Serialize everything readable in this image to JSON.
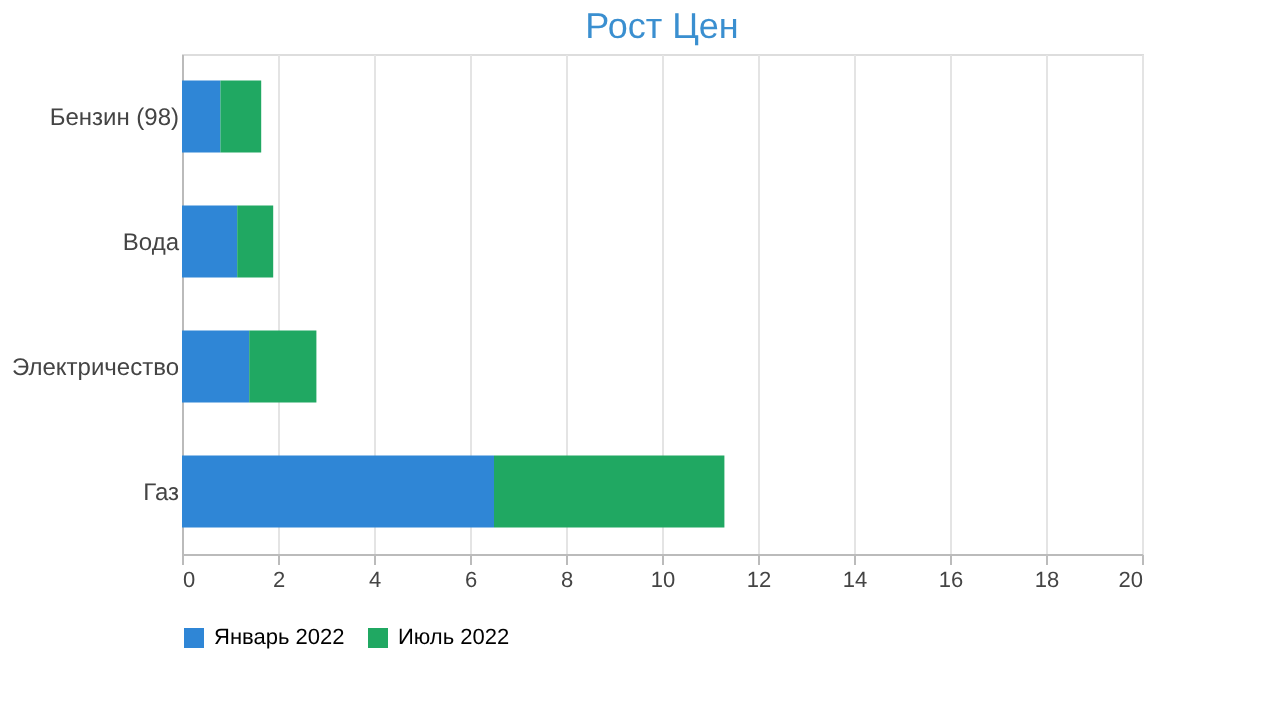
{
  "chart_data": {
    "type": "bar",
    "orientation": "horizontal",
    "stacked": true,
    "title": "Рост Цен",
    "categories": [
      "Бензин (98)",
      "Вода",
      "Электричество",
      "Газ"
    ],
    "series": [
      {
        "name": "Январь 2022",
        "color": "#2f86d6",
        "values": [
          0.8,
          1.15,
          1.4,
          6.5
        ]
      },
      {
        "name": "Июль 2022",
        "color": "#20a862",
        "values": [
          0.85,
          0.75,
          1.4,
          4.8
        ]
      }
    ],
    "xlim": [
      0,
      20
    ],
    "xticks": [
      0,
      2,
      4,
      6,
      8,
      10,
      12,
      14,
      16,
      18,
      20
    ],
    "grid": "x",
    "legend": "bottom"
  }
}
